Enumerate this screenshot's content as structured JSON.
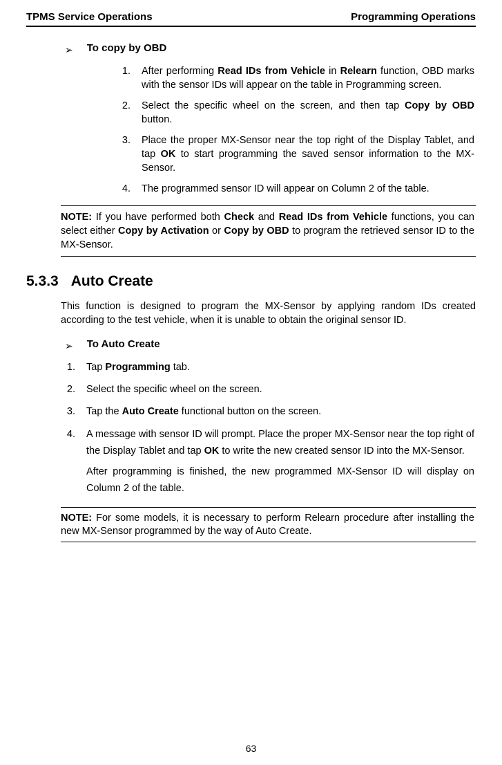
{
  "header": {
    "left": "TPMS Service Operations",
    "right": "Programming Operations"
  },
  "copy_obd": {
    "heading": "To copy by OBD",
    "steps": [
      "After performing <b>Read IDs from Vehicle</b> in <b>Relearn</b> function, OBD marks with the sensor IDs will appear on the table in Programming screen.",
      "Select the specific wheel on the screen, and then tap <b>Copy by OBD</b> button.",
      "Place the proper MX-Sensor near the top right of the Display Tablet, and tap <b>OK</b> to start programming the saved sensor information to the MX-Sensor.",
      "The programmed sensor ID will appear on Column 2 of the table."
    ],
    "note": "<b>NOTE:</b> If you have performed both <b>Check</b> and <b>Read IDs from Vehicle</b> functions, you can select either <b>Copy by Activation</b> or <b>Copy by OBD</b> to program the retrieved sensor ID to the MX-Sensor."
  },
  "section": {
    "number": "5.3.3",
    "title": "Auto Create",
    "intro": "This function is designed to program the MX-Sensor by applying random IDs created according to the test vehicle, when it is unable to obtain the original sensor ID."
  },
  "auto_create": {
    "heading": "To Auto Create",
    "steps": [
      "Tap <b>Programming</b> tab.",
      "Select the specific wheel on the screen.",
      "Tap the <b>Auto Create</b> functional button on the screen.",
      "A message with sensor ID will prompt. Place the proper MX-Sensor near the top right of the Display Tablet and tap <b>OK</b> to write the new created sensor ID into the MX-Sensor."
    ],
    "follow": "After programming is finished, the new programmed MX-Sensor ID will display on Column 2 of the table.",
    "note": "<b>NOTE:</b> For some models, it is necessary to perform Relearn procedure after installing the new MX-Sensor programmed by the way of Auto Create."
  },
  "pagenum": "63",
  "glyphs": {
    "arrow": "➢"
  }
}
